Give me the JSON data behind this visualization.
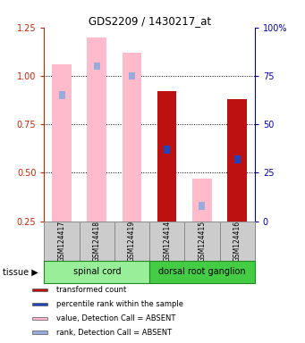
{
  "title": "GDS2209 / 1430217_at",
  "samples": [
    "GSM124417",
    "GSM124418",
    "GSM124419",
    "GSM124414",
    "GSM124415",
    "GSM124416"
  ],
  "tissue_groups": [
    {
      "label": "spinal cord",
      "start": 0,
      "end": 3,
      "color": "#99ee99"
    },
    {
      "label": "dorsal root ganglion",
      "start": 3,
      "end": 6,
      "color": "#44cc44"
    }
  ],
  "absent": [
    true,
    true,
    true,
    false,
    true,
    false
  ],
  "value_bars": [
    1.06,
    1.2,
    1.12,
    0.92,
    0.47,
    0.88
  ],
  "rank_bars": [
    0.9,
    1.05,
    1.0,
    0.62,
    0.33,
    0.57
  ],
  "ylim": [
    0.25,
    1.25
  ],
  "yticks_left": [
    0.25,
    0.5,
    0.75,
    1.0,
    1.25
  ],
  "yticks_right_vals": [
    0,
    25,
    50,
    75,
    100
  ],
  "color_value_present": "#bb1111",
  "color_value_absent": "#ffbbcc",
  "color_rank_present": "#2244bb",
  "color_rank_absent": "#99aadd",
  "legend_items": [
    {
      "label": "transformed count",
      "color": "#bb1111"
    },
    {
      "label": "percentile rank within the sample",
      "color": "#2244bb"
    },
    {
      "label": "value, Detection Call = ABSENT",
      "color": "#ffbbcc"
    },
    {
      "label": "rank, Detection Call = ABSENT",
      "color": "#99aadd"
    }
  ],
  "tissue_label": "tissue",
  "background_color": "#ffffff",
  "grid_dotted_at": [
    0.5,
    0.75,
    1.0
  ],
  "rank_bar_height": 0.04
}
